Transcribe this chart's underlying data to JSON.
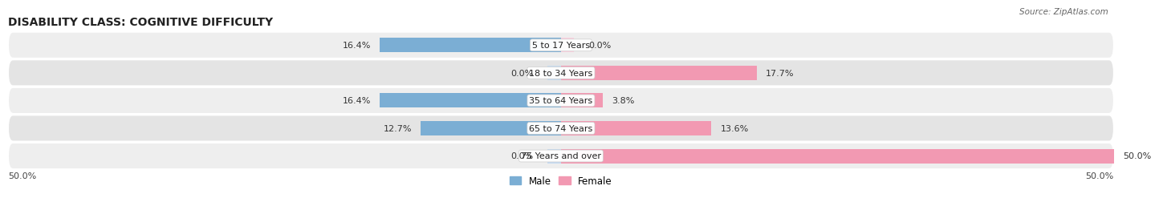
{
  "title": "DISABILITY CLASS: COGNITIVE DIFFICULTY",
  "source": "Source: ZipAtlas.com",
  "categories": [
    "5 to 17 Years",
    "18 to 34 Years",
    "35 to 64 Years",
    "65 to 74 Years",
    "75 Years and over"
  ],
  "male_values": [
    16.4,
    0.0,
    16.4,
    12.7,
    0.0
  ],
  "female_values": [
    0.0,
    17.7,
    3.8,
    13.6,
    50.0
  ],
  "max_value": 50.0,
  "male_color": "#7baed4",
  "female_color": "#f299b2",
  "male_light_color": "#c5daf0",
  "female_light_color": "#fad0de",
  "row_bg_colors": [
    "#eeeeee",
    "#e4e4e4",
    "#eeeeee",
    "#e4e4e4",
    "#eeeeee"
  ],
  "title_fontsize": 10,
  "label_fontsize": 8,
  "tick_fontsize": 8,
  "bar_height": 0.52,
  "background_color": "#ffffff"
}
